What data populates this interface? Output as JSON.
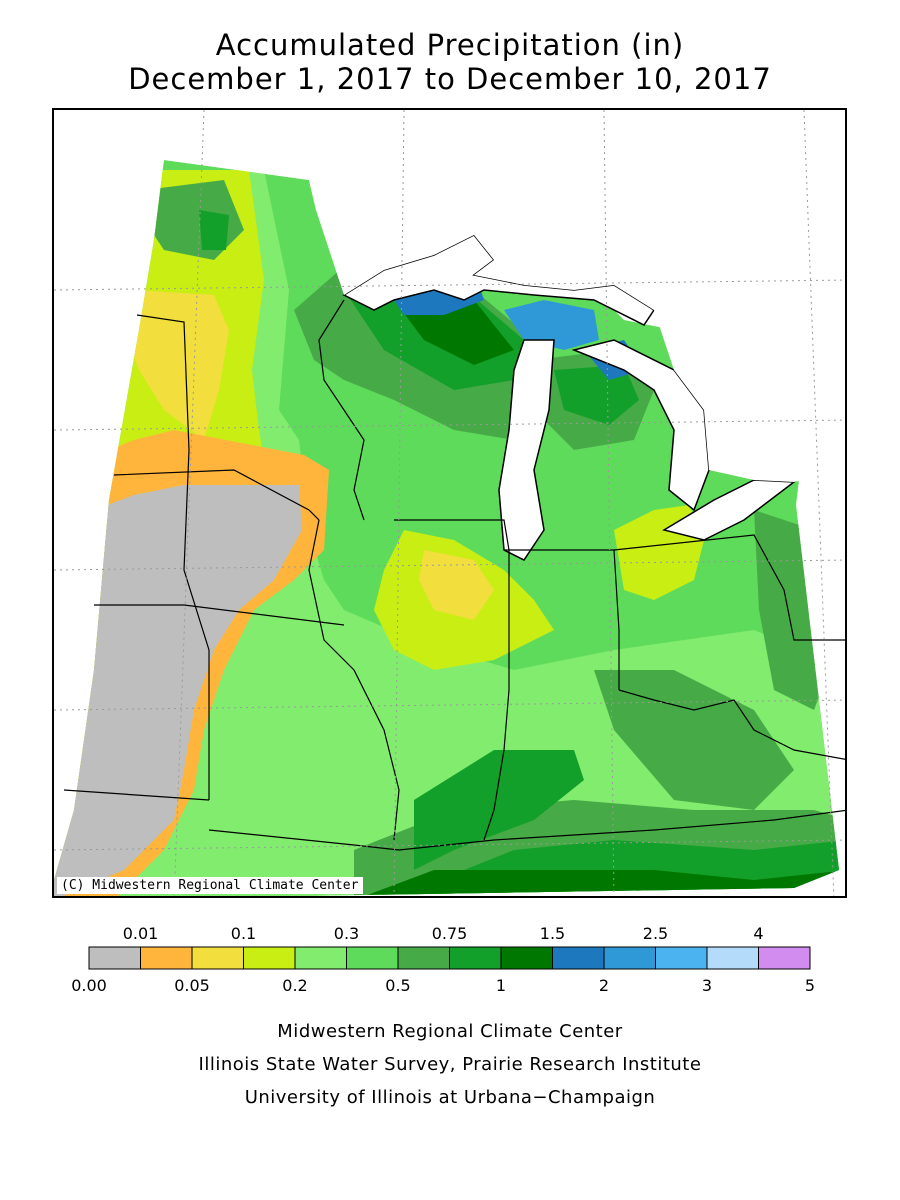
{
  "title": {
    "line1": "Accumulated Precipitation (in)",
    "line2": "December 1, 2017 to December 10, 2017"
  },
  "map": {
    "credit": "(C) Midwestern Regional Climate Center"
  },
  "legend": {
    "colors": [
      "#bebebe",
      "#ffb53c",
      "#f2de3c",
      "#c8ee14",
      "#82ec6e",
      "#5edb5a",
      "#46ab46",
      "#12a02a",
      "#007800",
      "#1e78be",
      "#2f99d8",
      "#4bb4f0",
      "#b4dcfa",
      "#d28cf0"
    ],
    "top_labels": [
      "0.01",
      "0.1",
      "0.3",
      "0.75",
      "1.5",
      "2.5",
      "4"
    ],
    "bottom_labels": [
      "0.00",
      "0.05",
      "0.2",
      "0.5",
      "1",
      "2",
      "3",
      "5"
    ]
  },
  "footer": {
    "line1": "Midwestern Regional Climate Center",
    "line2": "Illinois State Water Survey, Prairie Research Institute",
    "line3": "University of Illinois at Urbana−Champaign"
  }
}
